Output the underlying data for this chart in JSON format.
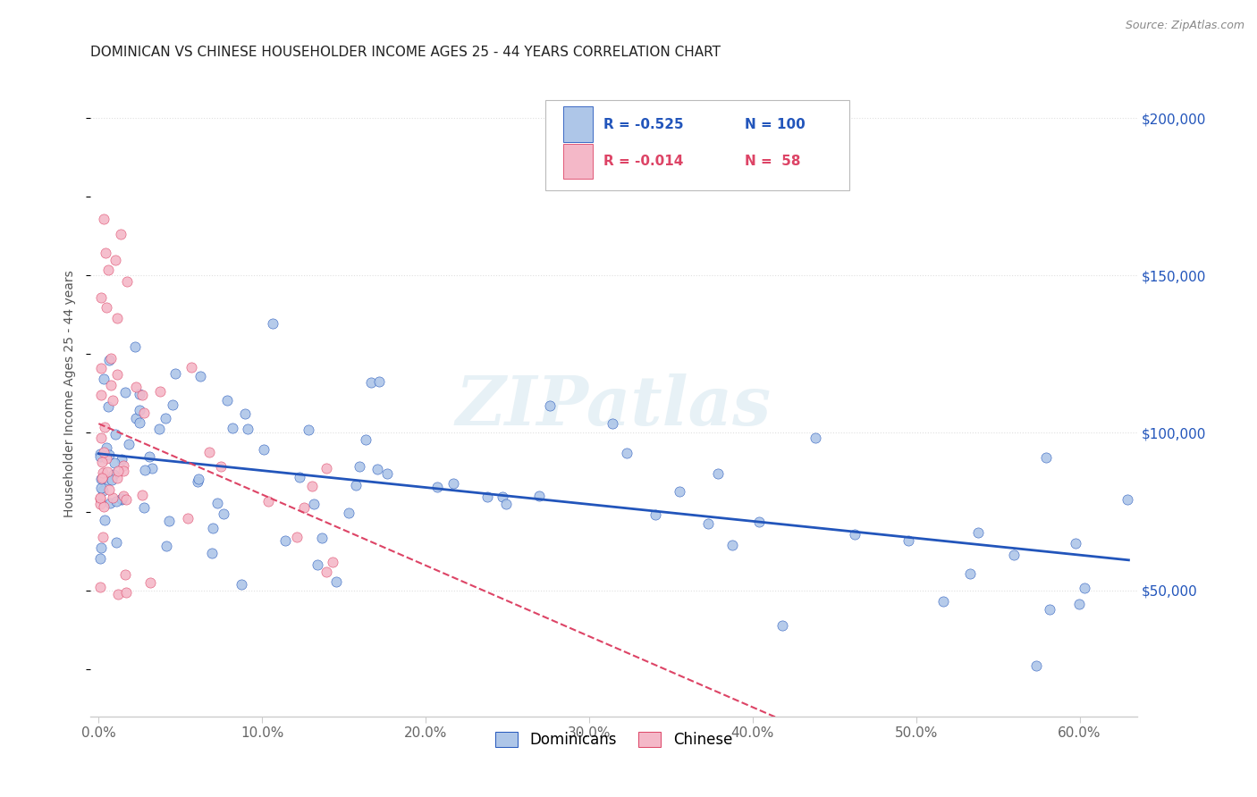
{
  "title": "DOMINICAN VS CHINESE HOUSEHOLDER INCOME AGES 25 - 44 YEARS CORRELATION CHART",
  "source": "Source: ZipAtlas.com",
  "ylabel": "Householder Income Ages 25 - 44 years",
  "xlabel_ticks": [
    "0.0%",
    "10.0%",
    "20.0%",
    "30.0%",
    "40.0%",
    "50.0%",
    "60.0%"
  ],
  "xlabel_vals": [
    0.0,
    0.1,
    0.2,
    0.3,
    0.4,
    0.5,
    0.6
  ],
  "ytick_labels": [
    "$50,000",
    "$100,000",
    "$150,000",
    "$200,000"
  ],
  "ytick_vals": [
    50000,
    100000,
    150000,
    200000
  ],
  "ylim": [
    10000,
    215000
  ],
  "xlim": [
    -0.005,
    0.635
  ],
  "dominican_color": "#aec6e8",
  "chinese_color": "#f4b8c8",
  "line_dominican_color": "#2255bb",
  "line_chinese_color": "#dd4466",
  "watermark": "ZIPatlas",
  "bg_color": "#ffffff",
  "grid_color": "#e0e0e0",
  "title_color": "#222222",
  "axis_color": "#888888",
  "source_color": "#888888",
  "tick_color": "#666666"
}
